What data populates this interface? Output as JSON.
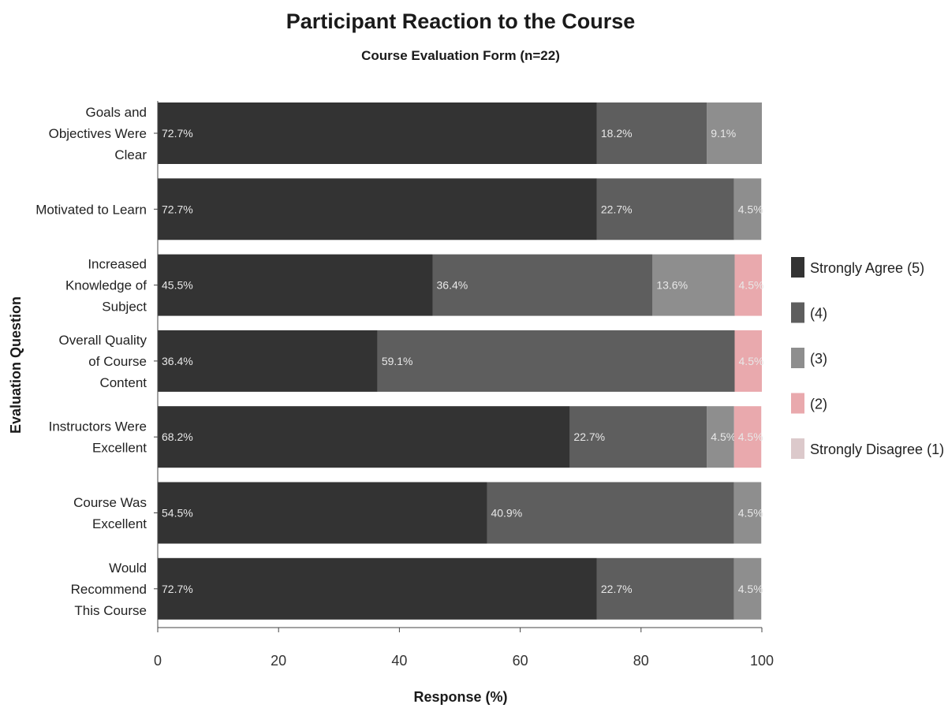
{
  "chart_data": {
    "type": "bar",
    "orientation": "horizontal",
    "stacked": true,
    "title": "Participant Reaction to the Course",
    "subtitle": "Course Evaluation Form (n=22)",
    "xlabel": "Response (%)",
    "ylabel": "Evaluation Question",
    "xlim": [
      0,
      100
    ],
    "xticks": [
      "0",
      "20",
      "40",
      "60",
      "80",
      "100"
    ],
    "grid": false,
    "legend_position": "right",
    "categories": [
      [
        "Goals and",
        "Objectives Were",
        "Clear"
      ],
      [
        "Motivated to Learn"
      ],
      [
        "Increased",
        "Knowledge of",
        "Subject"
      ],
      [
        "Overall Quality",
        "of Course",
        "Content"
      ],
      [
        "Instructors Were",
        "Excellent"
      ],
      [
        "Course Was",
        "Excellent"
      ],
      [
        "Would",
        "Recommend",
        "This Course"
      ]
    ],
    "series": [
      {
        "name": "Strongly Agree (5)",
        "color": "#333333",
        "values": [
          72.7,
          72.7,
          45.5,
          36.4,
          68.2,
          54.5,
          72.7
        ],
        "labels": [
          "72.7%",
          "72.7%",
          "45.5%",
          "36.4%",
          "68.2%",
          "54.5%",
          "72.7%"
        ]
      },
      {
        "name": "(4)",
        "color": "#5e5e5e",
        "values": [
          18.2,
          22.7,
          36.4,
          59.1,
          22.7,
          40.9,
          22.7
        ],
        "labels": [
          "18.2%",
          "22.7%",
          "36.4%",
          "59.1%",
          "22.7%",
          "40.9%",
          "22.7%"
        ]
      },
      {
        "name": "(3)",
        "color": "#8e8e8e",
        "values": [
          9.1,
          4.5,
          13.6,
          0,
          4.5,
          4.5,
          4.5
        ],
        "labels": [
          "9.1%",
          "4.5%",
          "13.6%",
          "",
          "4.5%",
          "4.5%",
          "4.5%"
        ]
      },
      {
        "name": "(2)",
        "color": "#e9a9ad",
        "values": [
          0,
          0,
          4.5,
          4.5,
          4.5,
          0,
          0
        ],
        "labels": [
          "",
          "",
          "4.5%",
          "4.5%",
          "4.5%",
          "",
          ""
        ]
      },
      {
        "name": "Strongly Disagree (1)",
        "color": "#dcc9cb",
        "values": [
          0,
          0,
          0,
          0,
          0,
          0,
          0
        ],
        "labels": [
          "",
          "",
          "",
          "",
          "",
          "",
          ""
        ]
      }
    ]
  }
}
